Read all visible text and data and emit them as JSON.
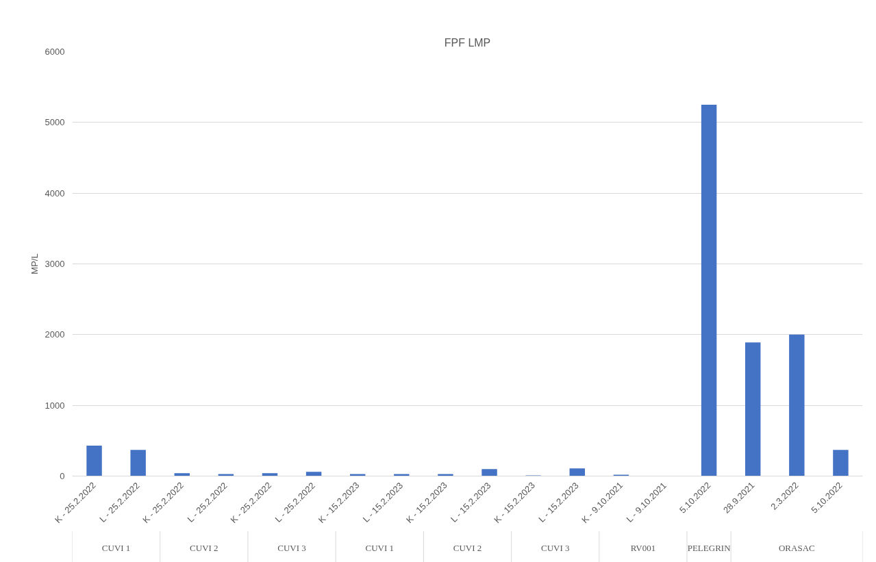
{
  "chart_data": {
    "type": "bar",
    "title": "FPF LMP",
    "ylabel": "MP/L",
    "categories": [
      "K - 25.2.2022",
      "L - 25.2.2022",
      "K - 25.2.2022",
      "L - 25.2.2022",
      "K - 25.2.2022",
      "L - 25.2.2022",
      "K - 15.2.2023",
      "L - 15.2.2023",
      "K - 15.2.2023",
      "L - 15.2.2023",
      "K - 15.2.2023",
      "L - 15.2.2023",
      "K - 9.10.2021",
      "L - 9.10.2021",
      "5.10.2022",
      "28.9.2021",
      "2.3.2022",
      "5.10.2022"
    ],
    "values": [
      430,
      370,
      40,
      30,
      40,
      60,
      30,
      30,
      30,
      100,
      10,
      110,
      20,
      0,
      5250,
      1890,
      2000,
      370
    ],
    "color": "#4472c4",
    "ylim": [
      0,
      6000
    ],
    "yticks": [
      0,
      1000,
      2000,
      3000,
      4000,
      5000,
      6000
    ],
    "grid": "y",
    "annotations": [
      "CUVI 1",
      "CUVI 2",
      "CUVI 3",
      "CUVI 1",
      "CUVI 2",
      "CUVI 3",
      "RV001",
      "PELEGRIN",
      "ORASAC"
    ]
  }
}
